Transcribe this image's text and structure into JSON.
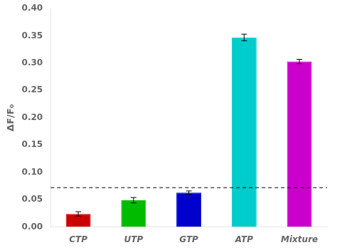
{
  "chart_data": {
    "type": "bar",
    "categories": [
      "CTP",
      "UTP",
      "GTP",
      "ATP",
      "Mixture"
    ],
    "values": [
      0.024,
      0.049,
      0.063,
      0.347,
      0.303
    ],
    "errors": [
      0.004,
      0.005,
      0.003,
      0.006,
      0.004
    ],
    "colors": [
      "#cc0000",
      "#00bb00",
      "#0000cc",
      "#00cccc",
      "#cc00cc"
    ],
    "reference_line": 0.072,
    "ylabel": "ΔF/F₀",
    "ylim": [
      0.0,
      0.4
    ],
    "yticks": [
      {
        "value": 0.0,
        "label": "0.00"
      },
      0.05,
      {
        "value": 0.1,
        "label": "0.10"
      },
      0.15,
      {
        "value": 0.2,
        "label": "0.20"
      },
      0.25,
      {
        "value": 0.3,
        "label": "0.30"
      },
      0.35,
      {
        "value": 0.4,
        "label": "0.40"
      }
    ],
    "grid": false
  }
}
